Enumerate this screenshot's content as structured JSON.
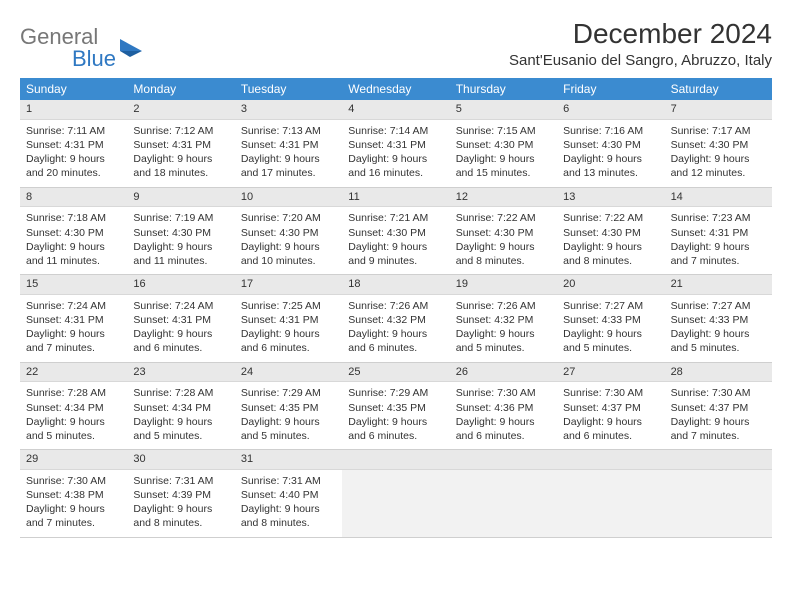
{
  "logo": {
    "gray": "General",
    "blue": "Blue"
  },
  "title": "December 2024",
  "location": "Sant'Eusanio del Sangro, Abruzzo, Italy",
  "colors": {
    "header_bg": "#3b8bd0",
    "header_text": "#ffffff",
    "daynum_bg": "#e9e9e9",
    "text": "#333333",
    "logo_blue": "#2f78c2",
    "logo_gray": "#777777",
    "background": "#ffffff",
    "border": "#cfcfcf"
  },
  "day_names": [
    "Sunday",
    "Monday",
    "Tuesday",
    "Wednesday",
    "Thursday",
    "Friday",
    "Saturday"
  ],
  "weeks": [
    [
      {
        "num": "1",
        "sunrise": "Sunrise: 7:11 AM",
        "sunset": "Sunset: 4:31 PM",
        "day1": "Daylight: 9 hours",
        "day2": "and 20 minutes."
      },
      {
        "num": "2",
        "sunrise": "Sunrise: 7:12 AM",
        "sunset": "Sunset: 4:31 PM",
        "day1": "Daylight: 9 hours",
        "day2": "and 18 minutes."
      },
      {
        "num": "3",
        "sunrise": "Sunrise: 7:13 AM",
        "sunset": "Sunset: 4:31 PM",
        "day1": "Daylight: 9 hours",
        "day2": "and 17 minutes."
      },
      {
        "num": "4",
        "sunrise": "Sunrise: 7:14 AM",
        "sunset": "Sunset: 4:31 PM",
        "day1": "Daylight: 9 hours",
        "day2": "and 16 minutes."
      },
      {
        "num": "5",
        "sunrise": "Sunrise: 7:15 AM",
        "sunset": "Sunset: 4:30 PM",
        "day1": "Daylight: 9 hours",
        "day2": "and 15 minutes."
      },
      {
        "num": "6",
        "sunrise": "Sunrise: 7:16 AM",
        "sunset": "Sunset: 4:30 PM",
        "day1": "Daylight: 9 hours",
        "day2": "and 13 minutes."
      },
      {
        "num": "7",
        "sunrise": "Sunrise: 7:17 AM",
        "sunset": "Sunset: 4:30 PM",
        "day1": "Daylight: 9 hours",
        "day2": "and 12 minutes."
      }
    ],
    [
      {
        "num": "8",
        "sunrise": "Sunrise: 7:18 AM",
        "sunset": "Sunset: 4:30 PM",
        "day1": "Daylight: 9 hours",
        "day2": "and 11 minutes."
      },
      {
        "num": "9",
        "sunrise": "Sunrise: 7:19 AM",
        "sunset": "Sunset: 4:30 PM",
        "day1": "Daylight: 9 hours",
        "day2": "and 11 minutes."
      },
      {
        "num": "10",
        "sunrise": "Sunrise: 7:20 AM",
        "sunset": "Sunset: 4:30 PM",
        "day1": "Daylight: 9 hours",
        "day2": "and 10 minutes."
      },
      {
        "num": "11",
        "sunrise": "Sunrise: 7:21 AM",
        "sunset": "Sunset: 4:30 PM",
        "day1": "Daylight: 9 hours",
        "day2": "and 9 minutes."
      },
      {
        "num": "12",
        "sunrise": "Sunrise: 7:22 AM",
        "sunset": "Sunset: 4:30 PM",
        "day1": "Daylight: 9 hours",
        "day2": "and 8 minutes."
      },
      {
        "num": "13",
        "sunrise": "Sunrise: 7:22 AM",
        "sunset": "Sunset: 4:30 PM",
        "day1": "Daylight: 9 hours",
        "day2": "and 8 minutes."
      },
      {
        "num": "14",
        "sunrise": "Sunrise: 7:23 AM",
        "sunset": "Sunset: 4:31 PM",
        "day1": "Daylight: 9 hours",
        "day2": "and 7 minutes."
      }
    ],
    [
      {
        "num": "15",
        "sunrise": "Sunrise: 7:24 AM",
        "sunset": "Sunset: 4:31 PM",
        "day1": "Daylight: 9 hours",
        "day2": "and 7 minutes."
      },
      {
        "num": "16",
        "sunrise": "Sunrise: 7:24 AM",
        "sunset": "Sunset: 4:31 PM",
        "day1": "Daylight: 9 hours",
        "day2": "and 6 minutes."
      },
      {
        "num": "17",
        "sunrise": "Sunrise: 7:25 AM",
        "sunset": "Sunset: 4:31 PM",
        "day1": "Daylight: 9 hours",
        "day2": "and 6 minutes."
      },
      {
        "num": "18",
        "sunrise": "Sunrise: 7:26 AM",
        "sunset": "Sunset: 4:32 PM",
        "day1": "Daylight: 9 hours",
        "day2": "and 6 minutes."
      },
      {
        "num": "19",
        "sunrise": "Sunrise: 7:26 AM",
        "sunset": "Sunset: 4:32 PM",
        "day1": "Daylight: 9 hours",
        "day2": "and 5 minutes."
      },
      {
        "num": "20",
        "sunrise": "Sunrise: 7:27 AM",
        "sunset": "Sunset: 4:33 PM",
        "day1": "Daylight: 9 hours",
        "day2": "and 5 minutes."
      },
      {
        "num": "21",
        "sunrise": "Sunrise: 7:27 AM",
        "sunset": "Sunset: 4:33 PM",
        "day1": "Daylight: 9 hours",
        "day2": "and 5 minutes."
      }
    ],
    [
      {
        "num": "22",
        "sunrise": "Sunrise: 7:28 AM",
        "sunset": "Sunset: 4:34 PM",
        "day1": "Daylight: 9 hours",
        "day2": "and 5 minutes."
      },
      {
        "num": "23",
        "sunrise": "Sunrise: 7:28 AM",
        "sunset": "Sunset: 4:34 PM",
        "day1": "Daylight: 9 hours",
        "day2": "and 5 minutes."
      },
      {
        "num": "24",
        "sunrise": "Sunrise: 7:29 AM",
        "sunset": "Sunset: 4:35 PM",
        "day1": "Daylight: 9 hours",
        "day2": "and 5 minutes."
      },
      {
        "num": "25",
        "sunrise": "Sunrise: 7:29 AM",
        "sunset": "Sunset: 4:35 PM",
        "day1": "Daylight: 9 hours",
        "day2": "and 6 minutes."
      },
      {
        "num": "26",
        "sunrise": "Sunrise: 7:30 AM",
        "sunset": "Sunset: 4:36 PM",
        "day1": "Daylight: 9 hours",
        "day2": "and 6 minutes."
      },
      {
        "num": "27",
        "sunrise": "Sunrise: 7:30 AM",
        "sunset": "Sunset: 4:37 PM",
        "day1": "Daylight: 9 hours",
        "day2": "and 6 minutes."
      },
      {
        "num": "28",
        "sunrise": "Sunrise: 7:30 AM",
        "sunset": "Sunset: 4:37 PM",
        "day1": "Daylight: 9 hours",
        "day2": "and 7 minutes."
      }
    ],
    [
      {
        "num": "29",
        "sunrise": "Sunrise: 7:30 AM",
        "sunset": "Sunset: 4:38 PM",
        "day1": "Daylight: 9 hours",
        "day2": "and 7 minutes."
      },
      {
        "num": "30",
        "sunrise": "Sunrise: 7:31 AM",
        "sunset": "Sunset: 4:39 PM",
        "day1": "Daylight: 9 hours",
        "day2": "and 8 minutes."
      },
      {
        "num": "31",
        "sunrise": "Sunrise: 7:31 AM",
        "sunset": "Sunset: 4:40 PM",
        "day1": "Daylight: 9 hours",
        "day2": "and 8 minutes."
      },
      null,
      null,
      null,
      null
    ]
  ]
}
